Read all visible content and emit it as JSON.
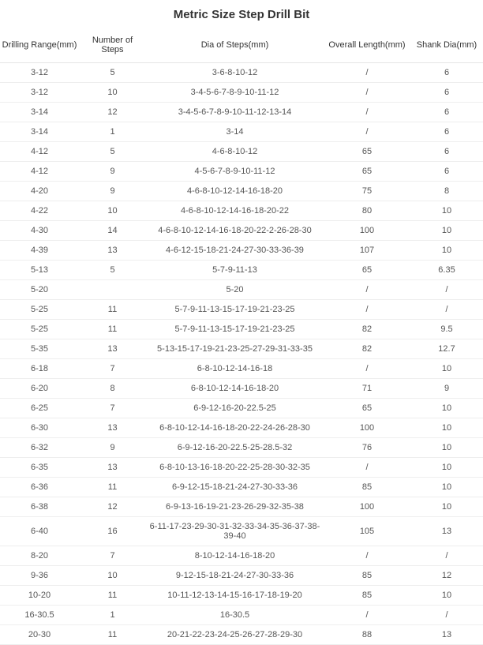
{
  "title": "Metric Size Step Drill Bit",
  "columns": [
    "Drilling Range(mm)",
    "Number of Steps",
    "Dia of Steps(mm)",
    "Overall Length(mm)",
    "Shank Dia(mm)"
  ],
  "rows": [
    [
      "3-12",
      "5",
      "3-6-8-10-12",
      "/",
      "6"
    ],
    [
      "3-12",
      "10",
      "3-4-5-6-7-8-9-10-11-12",
      "/",
      "6"
    ],
    [
      "3-14",
      "12",
      "3-4-5-6-7-8-9-10-11-12-13-14",
      "/",
      "6"
    ],
    [
      "3-14",
      "1",
      "3-14",
      "/",
      "6"
    ],
    [
      "4-12",
      "5",
      "4-6-8-10-12",
      "65",
      "6"
    ],
    [
      "4-12",
      "9",
      "4-5-6-7-8-9-10-11-12",
      "65",
      "6"
    ],
    [
      "4-20",
      "9",
      "4-6-8-10-12-14-16-18-20",
      "75",
      "8"
    ],
    [
      "4-22",
      "10",
      "4-6-8-10-12-14-16-18-20-22",
      "80",
      "10"
    ],
    [
      "4-30",
      "14",
      "4-6-8-10-12-14-16-18-20-22-2-26-28-30",
      "100",
      "10"
    ],
    [
      "4-39",
      "13",
      "4-6-12-15-18-21-24-27-30-33-36-39",
      "107",
      "10"
    ],
    [
      "5-13",
      "5",
      "5-7-9-11-13",
      "65",
      "6.35"
    ],
    [
      "5-20",
      "",
      "5-20",
      "/",
      "/"
    ],
    [
      "5-25",
      "11",
      "5-7-9-11-13-15-17-19-21-23-25",
      "/",
      "/"
    ],
    [
      "5-25",
      "11",
      "5-7-9-11-13-15-17-19-21-23-25",
      "82",
      "9.5"
    ],
    [
      "5-35",
      "13",
      "5-13-15-17-19-21-23-25-27-29-31-33-35",
      "82",
      "12.7"
    ],
    [
      "6-18",
      "7",
      "6-8-10-12-14-16-18",
      "/",
      "10"
    ],
    [
      "6-20",
      "8",
      "6-8-10-12-14-16-18-20",
      "71",
      "9"
    ],
    [
      "6-25",
      "7",
      "6-9-12-16-20-22.5-25",
      "65",
      "10"
    ],
    [
      "6-30",
      "13",
      "6-8-10-12-14-16-18-20-22-24-26-28-30",
      "100",
      "10"
    ],
    [
      "6-32",
      "9",
      "6-9-12-16-20-22.5-25-28.5-32",
      "76",
      "10"
    ],
    [
      "6-35",
      "13",
      "6-8-10-13-16-18-20-22-25-28-30-32-35",
      "/",
      "10"
    ],
    [
      "6-36",
      "11",
      "6-9-12-15-18-21-24-27-30-33-36",
      "85",
      "10"
    ],
    [
      "6-38",
      "12",
      "6-9-13-16-19-21-23-26-29-32-35-38",
      "100",
      "10"
    ],
    [
      "6-40",
      "16",
      "6-11-17-23-29-30-31-32-33-34-35-36-37-38-39-40",
      "105",
      "13"
    ],
    [
      "8-20",
      "7",
      "8-10-12-14-16-18-20",
      "/",
      "/"
    ],
    [
      "9-36",
      "10",
      "9-12-15-18-21-24-27-30-33-36",
      "85",
      "12"
    ],
    [
      "10-20",
      "11",
      "10-11-12-13-14-15-16-17-18-19-20",
      "85",
      "10"
    ],
    [
      "16-30.5",
      "1",
      "16-30.5",
      "/",
      "/"
    ],
    [
      "20-30",
      "11",
      "20-21-22-23-24-25-26-27-28-29-30",
      "88",
      "13"
    ]
  ]
}
